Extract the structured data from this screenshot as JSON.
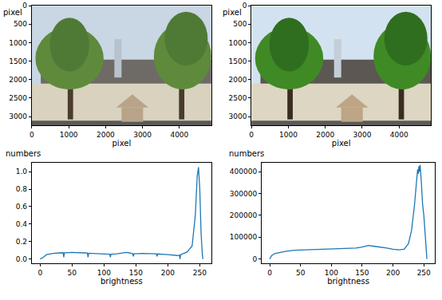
{
  "chart_data": [
    {
      "type": "image",
      "x_label": "pixel",
      "y_label": "pixel",
      "xlim": [
        0,
        4864
      ],
      "ylim": [
        3240,
        0
      ],
      "xticks": [
        0,
        1000,
        2000,
        3000,
        4000
      ],
      "yticks": [
        0,
        500,
        1000,
        1500,
        2000,
        2500,
        3000
      ]
    },
    {
      "type": "image",
      "x_label": "pixel",
      "y_label": "pixel",
      "xlim": [
        0,
        4864
      ],
      "ylim": [
        3240,
        0
      ],
      "xticks": [
        0,
        1000,
        2000,
        3000,
        4000
      ],
      "yticks": [
        0,
        500,
        1000,
        1500,
        2000,
        2500,
        3000
      ]
    },
    {
      "type": "line",
      "x_label": "brightness",
      "y_label": "numbers",
      "color": "#1f77b4",
      "x": [
        0,
        5,
        10,
        20,
        30,
        36,
        37,
        38,
        50,
        60,
        70,
        74,
        75,
        76,
        90,
        100,
        109,
        110,
        111,
        120,
        135,
        140,
        145,
        146,
        147,
        160,
        170,
        182,
        183,
        184,
        200,
        215,
        218,
        219,
        220,
        230,
        238,
        243,
        246,
        248,
        250,
        252,
        254,
        255
      ],
      "values": [
        0,
        0.02,
        0.05,
        0.065,
        0.07,
        0.072,
        0.02,
        0.072,
        0.075,
        0.075,
        0.07,
        0.068,
        0.02,
        0.066,
        0.06,
        0.058,
        0.055,
        0.02,
        0.055,
        0.06,
        0.075,
        0.07,
        0.06,
        0.03,
        0.06,
        0.065,
        0.06,
        0.06,
        0.03,
        0.058,
        0.05,
        0.04,
        0.045,
        0.0,
        0.05,
        0.08,
        0.15,
        0.5,
        0.95,
        1.05,
        0.8,
        0.3,
        0.05,
        0.0
      ],
      "xlim": [
        -13,
        268
      ],
      "xticks": [
        0,
        50,
        100,
        150,
        200,
        250
      ],
      "ylim": [
        -0.05,
        1.1
      ],
      "yticks": [
        {
          "value": 0,
          "label": "0.0"
        },
        {
          "value": 0.2,
          "label": "0.2"
        },
        {
          "value": 0.4,
          "label": "0.4"
        },
        {
          "value": 0.6,
          "label": "0.6"
        },
        {
          "value": 0.8,
          "label": "0.8"
        },
        {
          "value": 1,
          "label": "1.0"
        }
      ]
    },
    {
      "type": "line",
      "x_label": "brightness",
      "y_label": "numbers",
      "color": "#1f77b4",
      "x": [
        0,
        3,
        8,
        15,
        25,
        40,
        60,
        80,
        100,
        120,
        140,
        150,
        160,
        170,
        180,
        190,
        200,
        210,
        218,
        225,
        230,
        235,
        238,
        240,
        241,
        242,
        243,
        244,
        246,
        248,
        250,
        252,
        254,
        255
      ],
      "values": [
        0,
        15000,
        25000,
        30000,
        35000,
        40000,
        42000,
        43000,
        45000,
        47000,
        50000,
        55000,
        62000,
        58000,
        55000,
        50000,
        45000,
        42000,
        45000,
        70000,
        130000,
        250000,
        350000,
        410000,
        390000,
        425000,
        400000,
        430000,
        350000,
        250000,
        200000,
        120000,
        40000,
        0
      ],
      "xlim": [
        -13,
        268
      ],
      "xticks": [
        0,
        50,
        100,
        150,
        200,
        250
      ],
      "ylim": [
        -20000,
        440000
      ],
      "yticks": [
        0,
        100000,
        200000,
        300000,
        400000
      ]
    }
  ]
}
